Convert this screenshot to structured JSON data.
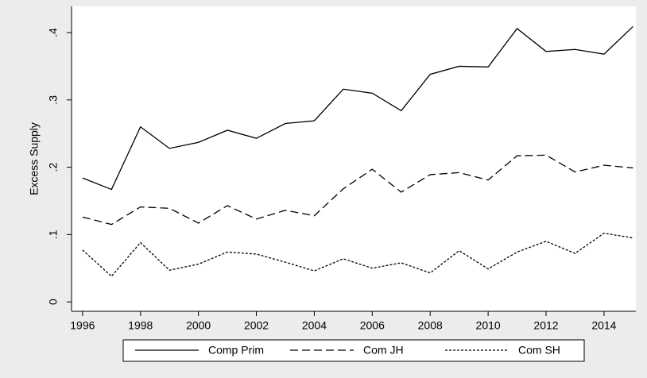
{
  "chart_data": {
    "type": "line",
    "ylabel": "Excess Supply",
    "x": [
      1996,
      1997,
      1998,
      1999,
      2000,
      2001,
      2002,
      2003,
      2004,
      2005,
      2006,
      2007,
      2008,
      2009,
      2010,
      2011,
      2012,
      2013,
      2014,
      2015
    ],
    "series": [
      {
        "name": "Comp Prim",
        "color": "#000000",
        "line_style": "solid",
        "values": [
          0.184,
          0.167,
          0.26,
          0.228,
          0.237,
          0.255,
          0.243,
          0.265,
          0.269,
          0.316,
          0.31,
          0.284,
          0.338,
          0.35,
          0.349,
          0.406,
          0.372,
          0.375,
          0.368,
          0.409
        ]
      },
      {
        "name": "Com JH",
        "color": "#000000",
        "line_style": "dashed",
        "values": [
          0.126,
          0.115,
          0.141,
          0.139,
          0.117,
          0.143,
          0.123,
          0.136,
          0.128,
          0.168,
          0.197,
          0.163,
          0.189,
          0.192,
          0.181,
          0.217,
          0.218,
          0.193,
          0.203,
          0.199
        ]
      },
      {
        "name": "Com SH",
        "color": "#000000",
        "line_style": "dotted",
        "values": [
          0.077,
          0.038,
          0.088,
          0.047,
          0.056,
          0.074,
          0.071,
          0.059,
          0.046,
          0.064,
          0.05,
          0.058,
          0.043,
          0.076,
          0.049,
          0.074,
          0.09,
          0.072,
          0.102,
          0.095
        ]
      }
    ],
    "xlim": [
      1995.62,
      2015.1
    ],
    "xticks": [
      1996,
      1998,
      2000,
      2002,
      2004,
      2006,
      2008,
      2010,
      2012,
      2014
    ],
    "ylim": [
      -0.014,
      0.439
    ],
    "yticks": [
      0,
      {
        "value": 0.1,
        "label": ".1"
      },
      {
        "value": 0.2,
        "label": ".2"
      },
      {
        "value": 0.3,
        "label": ".3"
      },
      {
        "value": 0.4,
        "label": ".4"
      }
    ],
    "grid": false,
    "legend": "bottom"
  }
}
